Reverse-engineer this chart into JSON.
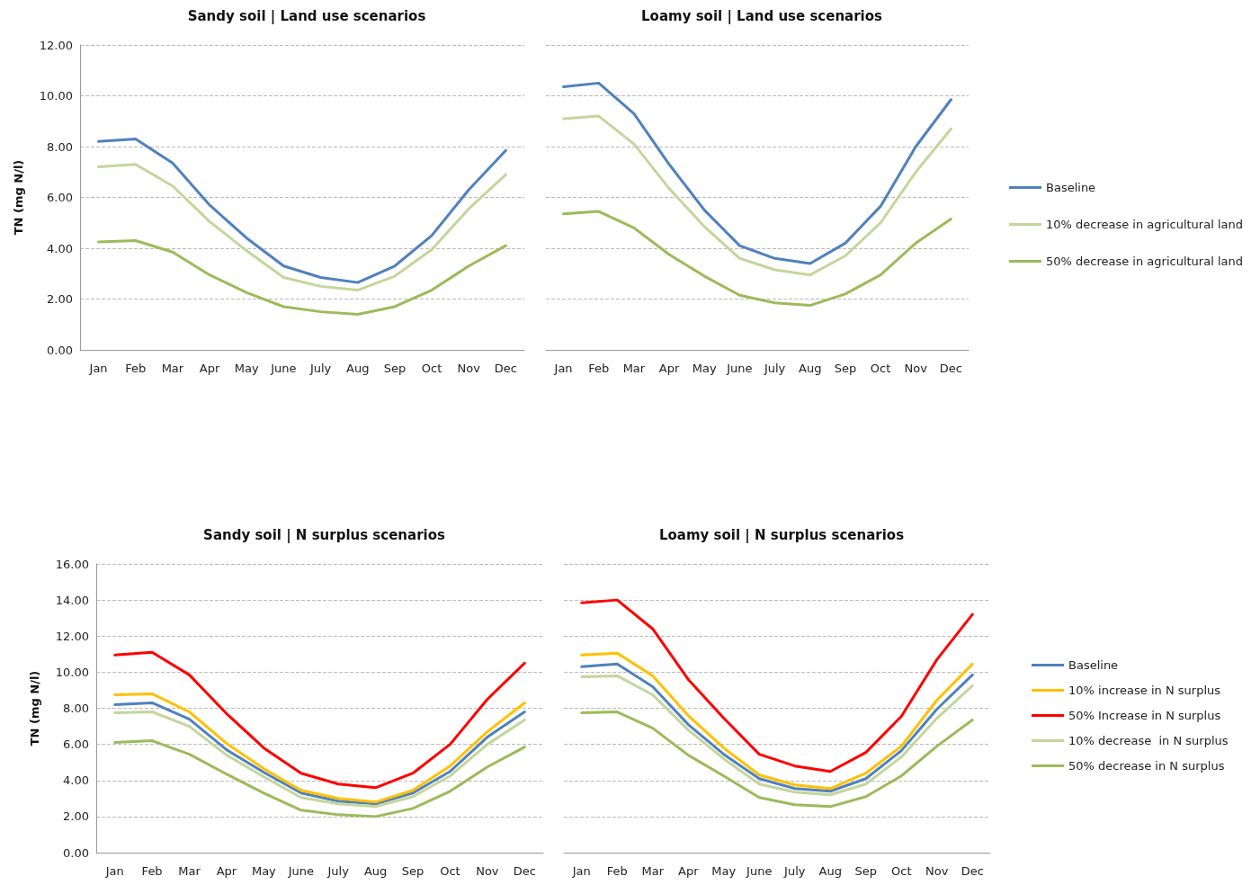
{
  "chart_data": [
    {
      "type": "line",
      "title": "Sandy soil | Land use scenarios",
      "ylabel": "TN (mg N/l)",
      "categories": [
        "Jan",
        "Feb",
        "Mar",
        "Apr",
        "May",
        "June",
        "July",
        "Aug",
        "Sep",
        "Oct",
        "Nov",
        "Dec"
      ],
      "ylim": [
        0,
        12
      ],
      "yticks": [
        {
          "value": 0,
          "label": "0.00"
        },
        {
          "value": 2,
          "label": "2.00"
        },
        {
          "value": 4,
          "label": "4.00"
        },
        {
          "value": 6,
          "label": "6.00"
        },
        {
          "value": 8,
          "label": "8.00"
        },
        {
          "value": 10,
          "label": "10.00"
        },
        {
          "value": 12,
          "label": "12.00"
        }
      ],
      "grid": "y",
      "legend": false,
      "marker": "none",
      "series": [
        {
          "color": "#4f81bd",
          "values": [
            8.2,
            8.3,
            7.35,
            5.7,
            4.4,
            3.3,
            2.85,
            2.65,
            3.3,
            4.5,
            6.3,
            7.85
          ]
        },
        {
          "color": "#c3d69b",
          "values": [
            7.2,
            7.3,
            6.45,
            5.05,
            3.9,
            2.85,
            2.5,
            2.35,
            2.9,
            3.95,
            5.55,
            6.9
          ]
        },
        {
          "color": "#9bbb59",
          "values": [
            4.25,
            4.3,
            3.85,
            2.95,
            2.25,
            1.7,
            1.5,
            1.4,
            1.7,
            2.35,
            3.3,
            4.1
          ]
        }
      ]
    },
    {
      "type": "line",
      "title": "Loamy soil | Land use scenarios",
      "categories": [
        "Jan",
        "Feb",
        "Mar",
        "Apr",
        "May",
        "June",
        "July",
        "Aug",
        "Sep",
        "Oct",
        "Nov",
        "Dec"
      ],
      "ylim": [
        0,
        12
      ],
      "yticks": [
        0,
        2,
        4,
        6,
        8,
        10,
        12
      ],
      "tick_labels": "x",
      "grid": "y",
      "legend": "right",
      "marker": "none",
      "series": [
        {
          "name": "Baseline",
          "color": "#4f81bd",
          "values": [
            10.35,
            10.5,
            9.3,
            7.3,
            5.5,
            4.1,
            3.6,
            3.4,
            4.2,
            5.65,
            8.0,
            9.85
          ]
        },
        {
          "name": "10% decrease in agricultural land",
          "color": "#c3d69b",
          "values": [
            9.1,
            9.2,
            8.1,
            6.35,
            4.85,
            3.6,
            3.15,
            2.95,
            3.7,
            5.0,
            7.0,
            8.7
          ]
        },
        {
          "name": "50% decrease in agricultural land",
          "color": "#9bbb59",
          "values": [
            5.35,
            5.45,
            4.8,
            3.75,
            2.9,
            2.15,
            1.85,
            1.75,
            2.2,
            2.95,
            4.2,
            5.15
          ]
        }
      ]
    },
    {
      "type": "line",
      "title": "Sandy soil | N surplus scenarios",
      "ylabel": "TN (mg N/l)",
      "categories": [
        "Jan",
        "Feb",
        "Mar",
        "Apr",
        "May",
        "June",
        "July",
        "Aug",
        "Sep",
        "Oct",
        "Nov",
        "Dec"
      ],
      "ylim": [
        0,
        16
      ],
      "yticks": [
        {
          "value": 0,
          "label": "0.00"
        },
        {
          "value": 2,
          "label": "2.00"
        },
        {
          "value": 4,
          "label": "4.00"
        },
        {
          "value": 6,
          "label": "6.00"
        },
        {
          "value": 8,
          "label": "8.00"
        },
        {
          "value": 10,
          "label": "10.00"
        },
        {
          "value": 12,
          "label": "12.00"
        },
        {
          "value": 14,
          "label": "14.00"
        },
        {
          "value": 16,
          "label": "16.00"
        }
      ],
      "grid": "y",
      "legend": false,
      "marker": "none",
      "series": [
        {
          "color": "#4f81bd",
          "values": [
            8.2,
            8.3,
            7.4,
            5.7,
            4.45,
            3.3,
            2.85,
            2.7,
            3.3,
            4.5,
            6.4,
            7.8
          ]
        },
        {
          "color": "#ffc000",
          "values": [
            8.75,
            8.8,
            7.8,
            6.05,
            4.65,
            3.45,
            3.0,
            2.8,
            3.45,
            4.8,
            6.7,
            8.3
          ]
        },
        {
          "color": "#ff0000",
          "values": [
            10.95,
            11.1,
            9.85,
            7.7,
            5.8,
            4.4,
            3.8,
            3.6,
            4.4,
            6.0,
            8.5,
            10.5
          ]
        },
        {
          "color": "#c3d69b",
          "values": [
            7.75,
            7.8,
            7.0,
            5.4,
            4.2,
            3.05,
            2.7,
            2.55,
            3.1,
            4.25,
            6.0,
            7.35
          ]
        },
        {
          "color": "#9bbb59",
          "values": [
            6.1,
            6.2,
            5.45,
            4.35,
            3.3,
            2.35,
            2.1,
            2.0,
            2.45,
            3.4,
            4.75,
            5.85
          ]
        }
      ]
    },
    {
      "type": "line",
      "title": "Loamy soil | N surplus scenarios",
      "categories": [
        "Jan",
        "Feb",
        "Mar",
        "Apr",
        "May",
        "June",
        "July",
        "Aug",
        "Sep",
        "Oct",
        "Nov",
        "Dec"
      ],
      "ylim": [
        0,
        16
      ],
      "yticks": [
        0,
        2,
        4,
        6,
        8,
        10,
        12,
        14,
        16
      ],
      "tick_labels": "x",
      "grid": "y",
      "legend": "right",
      "marker": "none",
      "series": [
        {
          "name": "Baseline",
          "color": "#4f81bd",
          "values": [
            10.3,
            10.45,
            9.2,
            7.1,
            5.45,
            4.1,
            3.55,
            3.4,
            4.1,
            5.65,
            7.95,
            9.85
          ]
        },
        {
          "name": "10% increase in N surplus",
          "color": "#ffc000",
          "values": [
            10.95,
            11.05,
            9.8,
            7.6,
            5.8,
            4.3,
            3.75,
            3.55,
            4.4,
            5.9,
            8.45,
            10.45
          ]
        },
        {
          "name": "50% Increase in N surplus",
          "color": "#ff0000",
          "values": [
            13.85,
            14.0,
            12.4,
            9.6,
            7.45,
            5.45,
            4.8,
            4.5,
            5.55,
            7.55,
            10.7,
            13.2
          ]
        },
        {
          "name": "10% decrease  in N surplus",
          "color": "#c3d69b",
          "values": [
            9.75,
            9.8,
            8.75,
            6.8,
            5.2,
            3.8,
            3.35,
            3.2,
            3.8,
            5.3,
            7.45,
            9.25
          ]
        },
        {
          "name": "50% decrease in N surplus",
          "color": "#9bbb59",
          "values": [
            7.75,
            7.8,
            6.9,
            5.4,
            4.25,
            3.05,
            2.65,
            2.55,
            3.1,
            4.25,
            5.9,
            7.35
          ]
        }
      ]
    }
  ]
}
